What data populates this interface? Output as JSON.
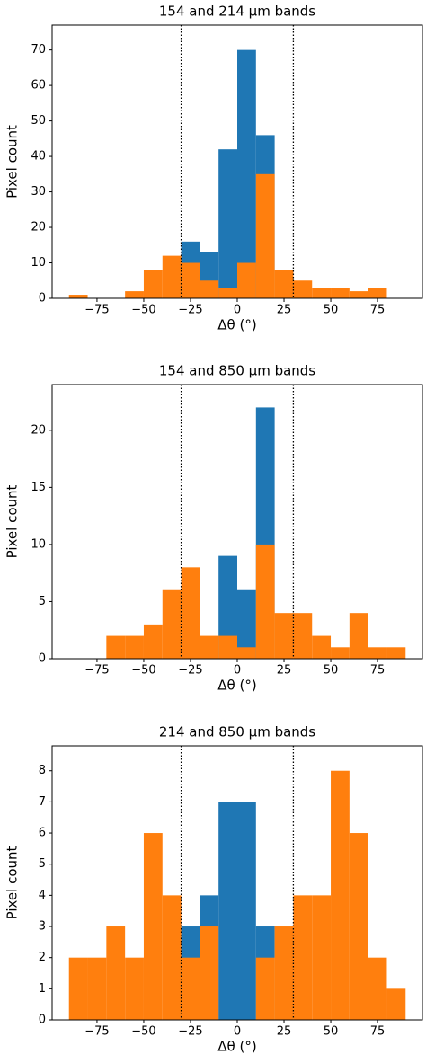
{
  "chart_data": [
    {
      "type": "histogram",
      "title": "154 and 214 μm bands",
      "xlabel": "Δθ (°)",
      "ylabel": "Pixel count",
      "xlim": [
        -99,
        99
      ],
      "ylim": [
        0,
        77
      ],
      "xticks": [
        {
          "value": -75,
          "label": "−75"
        },
        {
          "value": -50,
          "label": "−50"
        },
        {
          "value": -25,
          "label": "−25"
        },
        0,
        25,
        50,
        75
      ],
      "yticks": [
        0,
        10,
        20,
        30,
        40,
        50,
        60,
        70
      ],
      "vlines": [
        -30,
        30
      ],
      "series": [
        {
          "color": "#1f77b4",
          "bins": [
            -30,
            -20,
            -10,
            0,
            10,
            20
          ],
          "values": [
            16,
            13,
            42,
            70,
            46
          ]
        },
        {
          "color": "#ff7f0e",
          "bins": [
            -90,
            -80,
            -70,
            -60,
            -50,
            -40,
            -30,
            -20,
            -10,
            0,
            10,
            20,
            30,
            40,
            50,
            60,
            70,
            80
          ],
          "values": [
            1,
            0,
            0,
            2,
            8,
            12,
            10,
            5,
            3,
            10,
            35,
            8,
            5,
            3,
            3,
            2,
            3
          ]
        }
      ]
    },
    {
      "type": "histogram",
      "title": "154 and 850 μm bands",
      "xlabel": "Δθ (°)",
      "ylabel": "Pixel count",
      "xlim": [
        -99,
        99
      ],
      "ylim": [
        0,
        24
      ],
      "xticks": [
        {
          "value": -75,
          "label": "−75"
        },
        {
          "value": -50,
          "label": "−50"
        },
        {
          "value": -25,
          "label": "−25"
        },
        0,
        25,
        50,
        75
      ],
      "yticks": [
        0,
        5,
        10,
        15,
        20
      ],
      "vlines": [
        -30,
        30
      ],
      "series": [
        {
          "color": "#1f77b4",
          "bins": [
            -10,
            0,
            10,
            20
          ],
          "values": [
            9,
            6,
            22
          ]
        },
        {
          "color": "#ff7f0e",
          "bins": [
            -70,
            -60,
            -50,
            -40,
            -30,
            -20,
            -10,
            0,
            10,
            20,
            30,
            40,
            50,
            60,
            70,
            80,
            90
          ],
          "values": [
            2,
            2,
            3,
            6,
            8,
            2,
            2,
            1,
            10,
            4,
            4,
            2,
            1,
            4,
            1,
            1
          ]
        }
      ]
    },
    {
      "type": "histogram",
      "title": "214 and 850 μm bands",
      "xlabel": "Δθ (°)",
      "ylabel": "Pixel count",
      "xlim": [
        -99,
        99
      ],
      "ylim": [
        0,
        8.8
      ],
      "xticks": [
        {
          "value": -75,
          "label": "−75"
        },
        {
          "value": -50,
          "label": "−50"
        },
        {
          "value": -25,
          "label": "−25"
        },
        0,
        25,
        50,
        75
      ],
      "yticks": [
        0,
        1,
        2,
        3,
        4,
        5,
        6,
        7,
        8
      ],
      "vlines": [
        -30,
        30
      ],
      "series": [
        {
          "color": "#1f77b4",
          "bins": [
            -30,
            -20,
            -10,
            0,
            10,
            20
          ],
          "values": [
            3,
            4,
            7,
            7,
            3
          ]
        },
        {
          "color": "#ff7f0e",
          "bins": [
            -90,
            -80,
            -70,
            -60,
            -50,
            -40,
            -30,
            -20,
            -10,
            0,
            10,
            20,
            30,
            40,
            50,
            60,
            70,
            80,
            90
          ],
          "values": [
            2,
            2,
            3,
            2,
            6,
            4,
            2,
            3,
            0,
            0,
            2,
            3,
            4,
            4,
            8,
            6,
            2,
            1
          ]
        }
      ]
    }
  ]
}
